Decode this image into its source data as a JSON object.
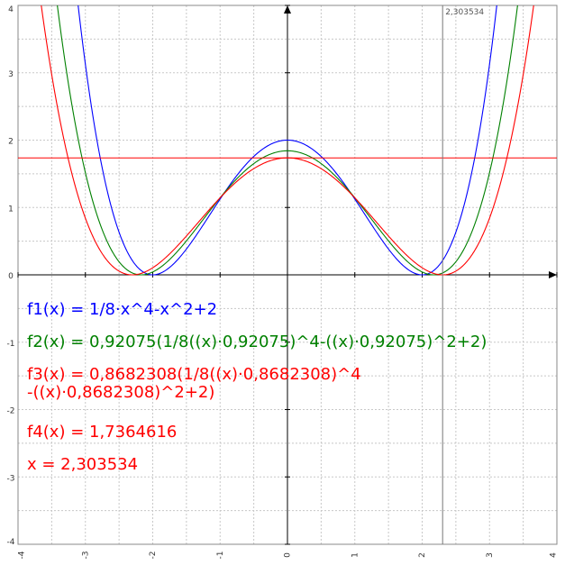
{
  "chart_data": {
    "type": "line",
    "title": "",
    "xlabel": "",
    "ylabel": "",
    "xlim": [
      -4,
      4
    ],
    "ylim": [
      -4,
      4
    ],
    "grid": true,
    "x_ticks": [
      -4,
      -3,
      -2,
      -1,
      0,
      1,
      2,
      3,
      4
    ],
    "y_ticks": [
      -4,
      -3,
      -2,
      -1,
      0,
      1,
      2,
      3,
      4
    ],
    "series": [
      {
        "name": "f1",
        "color": "#0000ff",
        "k": 1.0,
        "a": 1.0
      },
      {
        "name": "f2",
        "color": "#008000",
        "k": 0.92075,
        "a": 0.92075
      },
      {
        "name": "f3",
        "color": "#ff0000",
        "k": 0.8682308,
        "a": 0.8682308
      }
    ],
    "horizontal_line": {
      "y": 1.7364616,
      "color": "#ff0000"
    },
    "vertical_line": {
      "x": 2.303534,
      "label": "2,303534",
      "color": "#777777"
    },
    "formulas": [
      {
        "text": "f1(x) = 1/8·x^4-x^2+2",
        "color": "#0000ff"
      },
      {
        "text": "f2(x) = 0,92075(1/8((x)·0,92075)^4-((x)·0,92075)^2+2)",
        "color": "#008000"
      },
      {
        "text": "f3(x) = 0,8682308(1/8((x)·0,8682308)^4\n-((x)·0,8682308)^2+2)",
        "color": "#ff0000"
      },
      {
        "text": "f4(x) = 1,7364616",
        "color": "#ff0000"
      },
      {
        "text": "x = 2,303534",
        "color": "#ff0000"
      }
    ]
  }
}
